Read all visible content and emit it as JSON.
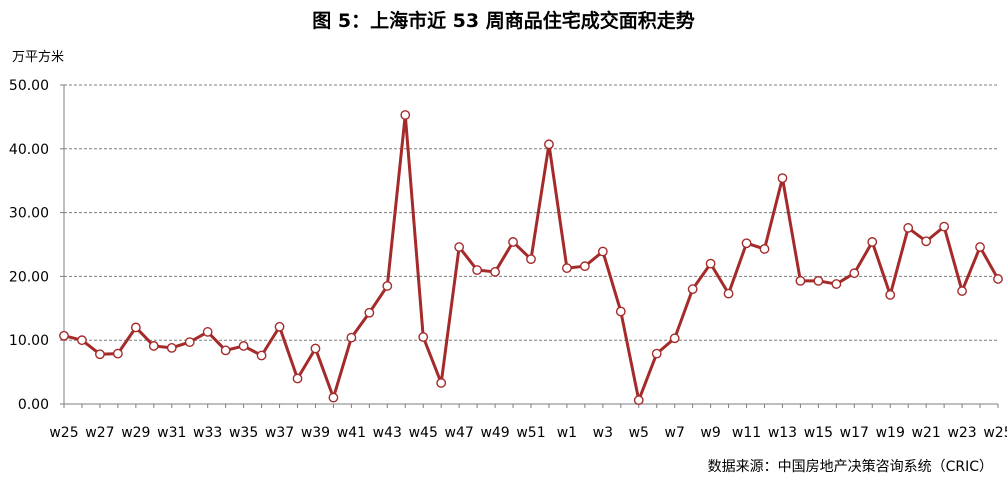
{
  "chart_data": {
    "type": "line",
    "title": "图 5：上海市近 53 周商品住宅成交面积走势",
    "ylabel": "万平方米",
    "ylim": [
      0,
      50
    ],
    "yticks": [
      "0.00",
      "10.00",
      "20.00",
      "30.00",
      "40.00",
      "50.00"
    ],
    "grid": true,
    "categories": [
      "w25",
      "w26",
      "w27",
      "w28",
      "w29",
      "w30",
      "w31",
      "w32",
      "w33",
      "w34",
      "w35",
      "w36",
      "w37",
      "w38",
      "w39",
      "w40",
      "w41",
      "w42",
      "w43",
      "w44",
      "w45",
      "w46",
      "w47",
      "w48",
      "w49",
      "w50",
      "w51",
      "w52",
      "w1",
      "w2",
      "w3",
      "w4",
      "w5",
      "w6",
      "w7",
      "w8",
      "w9",
      "w10",
      "w11",
      "w12",
      "w13",
      "w14",
      "w15",
      "w16",
      "w17",
      "w18",
      "w19",
      "w20",
      "w21",
      "w22",
      "w23",
      "w24",
      "w25"
    ],
    "xtick_labels": [
      "w25",
      "w27",
      "w29",
      "w31",
      "w33",
      "w35",
      "w37",
      "w39",
      "w41",
      "w43",
      "w45",
      "w47",
      "w49",
      "w51",
      "w1",
      "w3",
      "w5",
      "w7",
      "w9",
      "w11",
      "w13",
      "w15",
      "w17",
      "w19",
      "w21",
      "w23",
      "w25"
    ],
    "series": [
      {
        "values": [
          10.7,
          10.0,
          7.8,
          7.9,
          12.0,
          9.1,
          8.8,
          9.7,
          11.3,
          8.4,
          9.1,
          7.6,
          12.1,
          4.0,
          8.7,
          1.0,
          10.4,
          14.3,
          18.5,
          45.3,
          10.5,
          3.3,
          24.6,
          21.0,
          20.7,
          25.4,
          22.7,
          40.7,
          21.3,
          21.6,
          23.9,
          14.5,
          0.6,
          7.9,
          10.3,
          18.0,
          22.0,
          17.3,
          25.2,
          24.3,
          35.4,
          19.3,
          19.3,
          18.8,
          20.5,
          25.4,
          17.1,
          27.6,
          25.5,
          27.8,
          17.7,
          24.6,
          19.6
        ]
      }
    ],
    "colors": {
      "line": "#a52a2a",
      "marker_fill": "#ffffff",
      "grid": "#7f7f7f"
    }
  },
  "source": "数据来源：中国房地产决策咨询系统（CRIC）"
}
